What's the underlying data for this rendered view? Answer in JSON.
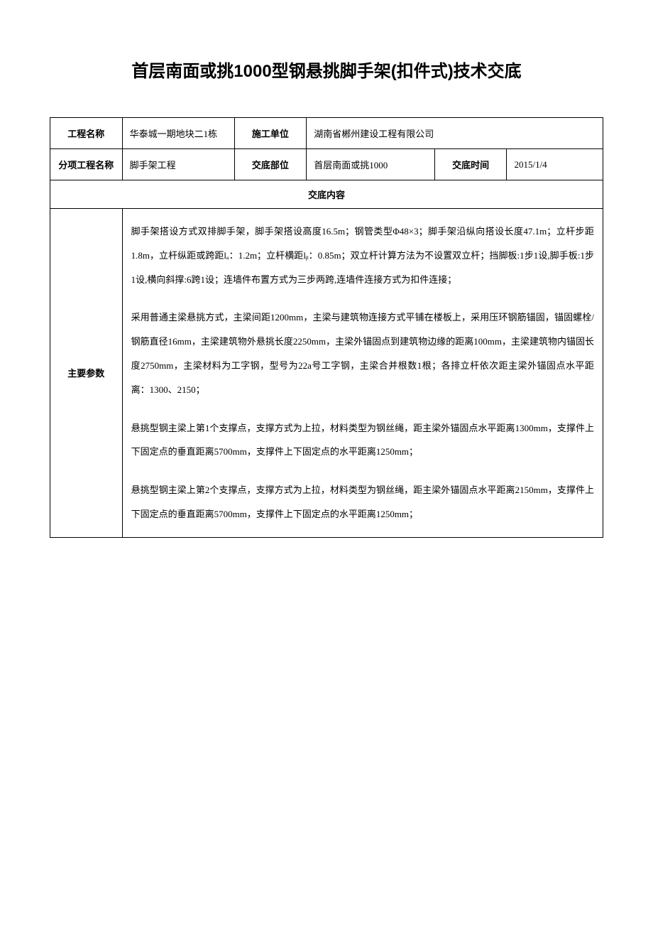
{
  "title": "首层南面或挑1000型钢悬挑脚手架(扣件式)技术交底",
  "table": {
    "row1": {
      "label1": "工程名称",
      "value1": "华泰城一期地块二1栋",
      "label2": "施工单位",
      "value2": "湖南省郴州建设工程有限公司"
    },
    "row2": {
      "label1": "分项工程名称",
      "value1": "脚手架工程",
      "label2": "交底部位",
      "value2": "首层南面或挑1000",
      "label3": "交底时间",
      "value3": "2015/1/4"
    },
    "content_header": "交底内容",
    "param_label": "主要参数",
    "paragraphs": {
      "p1": "脚手架搭设方式双排脚手架，脚手架搭设高度16.5m；钢管类型Φ48×3；脚手架沿纵向搭设长度47.1m；立杆步距1.8m，立杆纵距或跨距lₐ：1.2m；立杆横距lᵦ：0.85m；双立杆计算方法为不设置双立杆；挡脚板:1步1设,脚手板:1步1设,横向斜撑:6跨1设；连墙件布置方式为三步两跨,连墙件连接方式为扣件连接；",
      "p2": "采用普通主梁悬挑方式，主梁间距1200mm，主梁与建筑物连接方式平铺在楼板上，采用压环钢筋锚固，锚固螺栓/钢筋直径16mm，主梁建筑物外悬挑长度2250mm，主梁外锚固点到建筑物边缘的距离100mm，主梁建筑物内锚固长度2750mm，主梁材料为工字钢，型号为22a号工字钢，主梁合并根数1根；各排立杆依次距主梁外锚固点水平距离：1300、2150；",
      "p3": "悬挑型钢主梁上第1个支撑点，支撑方式为上拉，材料类型为钢丝绳，距主梁外锚固点水平距离1300mm，支撑件上下固定点的垂直距离5700mm，支撑件上下固定点的水平距离1250mm；",
      "p4": "悬挑型钢主梁上第2个支撑点，支撑方式为上拉，材料类型为钢丝绳，距主梁外锚固点水平距离2150mm，支撑件上下固定点的垂直距离5700mm，支撑件上下固定点的水平距离1250mm；"
    }
  },
  "colors": {
    "background": "#ffffff",
    "border": "#000000",
    "text": "#000000"
  },
  "fonts": {
    "title_size": 24,
    "cell_size": 13,
    "line_height": 2.6
  }
}
